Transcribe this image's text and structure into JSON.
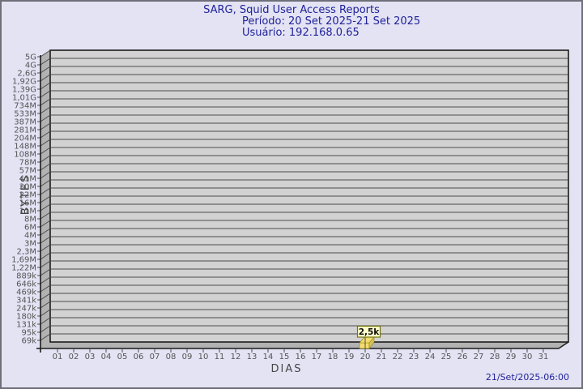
{
  "header": {
    "title": "SARG, Squid User Access Reports",
    "period": "Período: 20 Set 2025-21 Set 2025",
    "user": "Usuário: 192.168.0.65"
  },
  "footer": {
    "generated": "21/Set/2025-06:00"
  },
  "chart_data": {
    "type": "bar",
    "title": "SARG, Squid User Access Reports",
    "subtitle": [
      "Período: 20 Set 2025-21 Set 2025",
      "Usuário: 192.168.0.65"
    ],
    "xlabel": "DIAS",
    "ylabel": "BYTES",
    "grid": "horizontal",
    "legend": "none",
    "x_categories": [
      "01",
      "02",
      "03",
      "04",
      "05",
      "06",
      "07",
      "08",
      "09",
      "10",
      "11",
      "12",
      "13",
      "14",
      "15",
      "16",
      "17",
      "18",
      "19",
      "20",
      "21",
      "22",
      "23",
      "24",
      "25",
      "26",
      "27",
      "28",
      "29",
      "30",
      "31"
    ],
    "y_tick_labels": [
      "5G",
      "4G",
      "2,6G",
      "1,92G",
      "1,39G",
      "1,01G",
      "734M",
      "533M",
      "387M",
      "281M",
      "204M",
      "148M",
      "108M",
      "78M",
      "57M",
      "41M",
      "30M",
      "22M",
      "16M",
      "11M",
      "8M",
      "6M",
      "4M",
      "3M",
      "2,3M",
      "1,69M",
      "1,22M",
      "889k",
      "646k",
      "469k",
      "341k",
      "247k",
      "180k",
      "131k",
      "95k",
      "69k"
    ],
    "bars": [
      {
        "x": "20",
        "label": "2,5k",
        "value_bytes": 2500
      }
    ],
    "colors": {
      "page_bg": "#e3e3f4",
      "plot_bg": "#d2d2d2",
      "wall": "#b2b2b2",
      "grid": "#4c4c4c",
      "frame": "#1b1b1b",
      "axis_text": "#545454",
      "title_text": "#21219b",
      "bar": "#f3dc6f",
      "bar_side": "#d9c35a",
      "bar_edge": "#96860a",
      "label_box_bg": "#ffffc9",
      "label_box_border": "#73730f"
    }
  }
}
